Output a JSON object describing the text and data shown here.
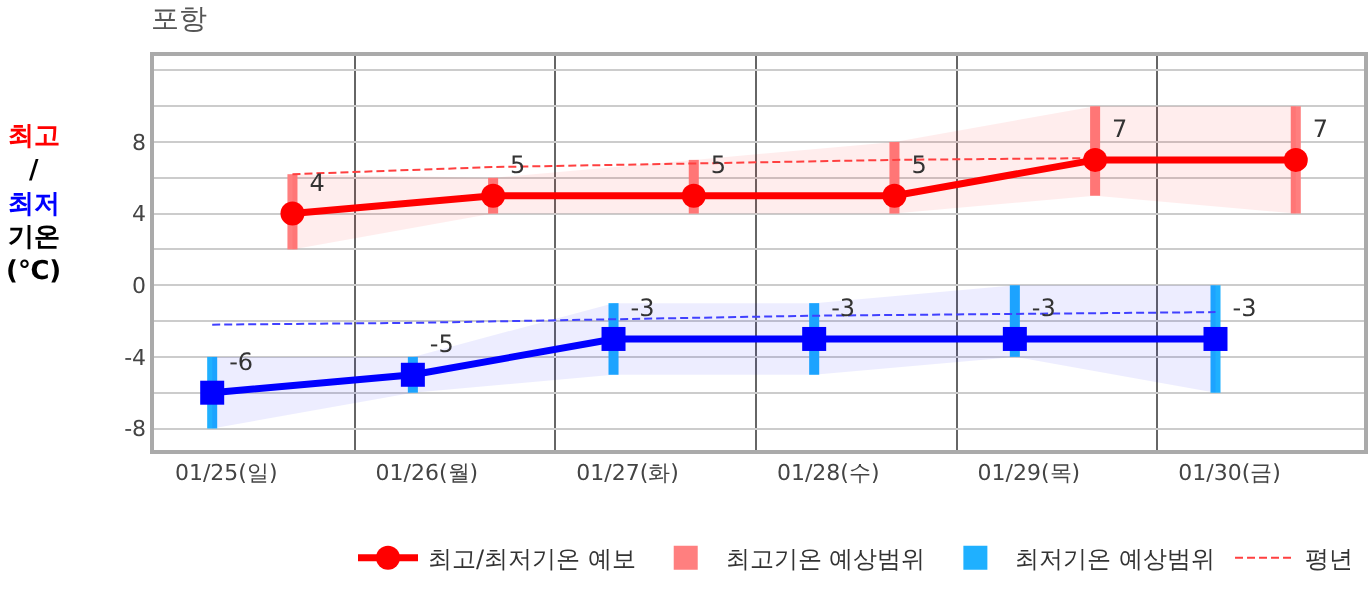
{
  "chart_data": {
    "type": "line",
    "title": "포항",
    "ylabel": "최고\n/\n최저\n기온\n(℃)",
    "categories": [
      "01/25(일)",
      "01/26(월)",
      "01/27(화)",
      "01/28(수)",
      "01/29(목)",
      "01/30(금)"
    ],
    "ylim": [
      -9.2,
      12.8
    ],
    "yticks": [
      -8,
      {
        "value": -6,
        "label": null
      },
      -4,
      {
        "value": -2,
        "label": null
      },
      0,
      {
        "value": 2,
        "label": null
      },
      4,
      {
        "value": 6,
        "label": null
      },
      8,
      {
        "value": 10,
        "label": null
      },
      {
        "value": 12,
        "label": null
      }
    ],
    "grid": true,
    "legend": "bottom",
    "series": [
      {
        "name": "최고/최저기온 예보",
        "color": "#ff0000",
        "marker": "circle",
        "values": [
          4,
          5,
          5,
          5,
          7,
          7
        ],
        "lower": [
          2,
          4,
          4,
          4,
          5,
          4
        ],
        "upper": [
          6.2,
          6,
          7,
          8,
          10,
          10
        ],
        "value_labels": [
          "4",
          "5",
          "5",
          "5",
          "7",
          "7"
        ]
      },
      {
        "color": "#0000ff",
        "marker": "square",
        "values": [
          -6,
          -5,
          -3,
          -3,
          -3,
          -3
        ],
        "lower": [
          -8,
          -6,
          -5,
          -5,
          -4,
          -6
        ],
        "upper": [
          -4,
          -4,
          -1,
          -1,
          0,
          0
        ],
        "value_labels": [
          "-6",
          "-5",
          "-3",
          "-3",
          "-3",
          "-3"
        ]
      },
      {
        "type": "bar",
        "name": "최고기온 예상범위",
        "color": "#ff7f7f",
        "base": [
          2,
          4,
          4,
          4,
          5,
          4
        ],
        "values": [
          4.2,
          2,
          3,
          4,
          5,
          6
        ]
      },
      {
        "type": "bar",
        "name": "최저기온 예상범위",
        "color": "#1fb0ff",
        "base": [
          -8,
          -6,
          -5,
          -5,
          -4,
          -6
        ],
        "values": [
          4,
          2,
          4,
          4,
          4,
          6
        ]
      },
      {
        "name": "평년",
        "color": "#ff4040",
        "line_style": "dashed",
        "marker": "none",
        "values": [
          6.2,
          6.6,
          6.8,
          7.0,
          7.1,
          null
        ]
      },
      {
        "color": "#4040ff",
        "line_style": "dashed",
        "marker": "none",
        "values": [
          -2.2,
          -2.1,
          -1.9,
          -1.7,
          -1.6,
          -1.5
        ]
      }
    ]
  }
}
